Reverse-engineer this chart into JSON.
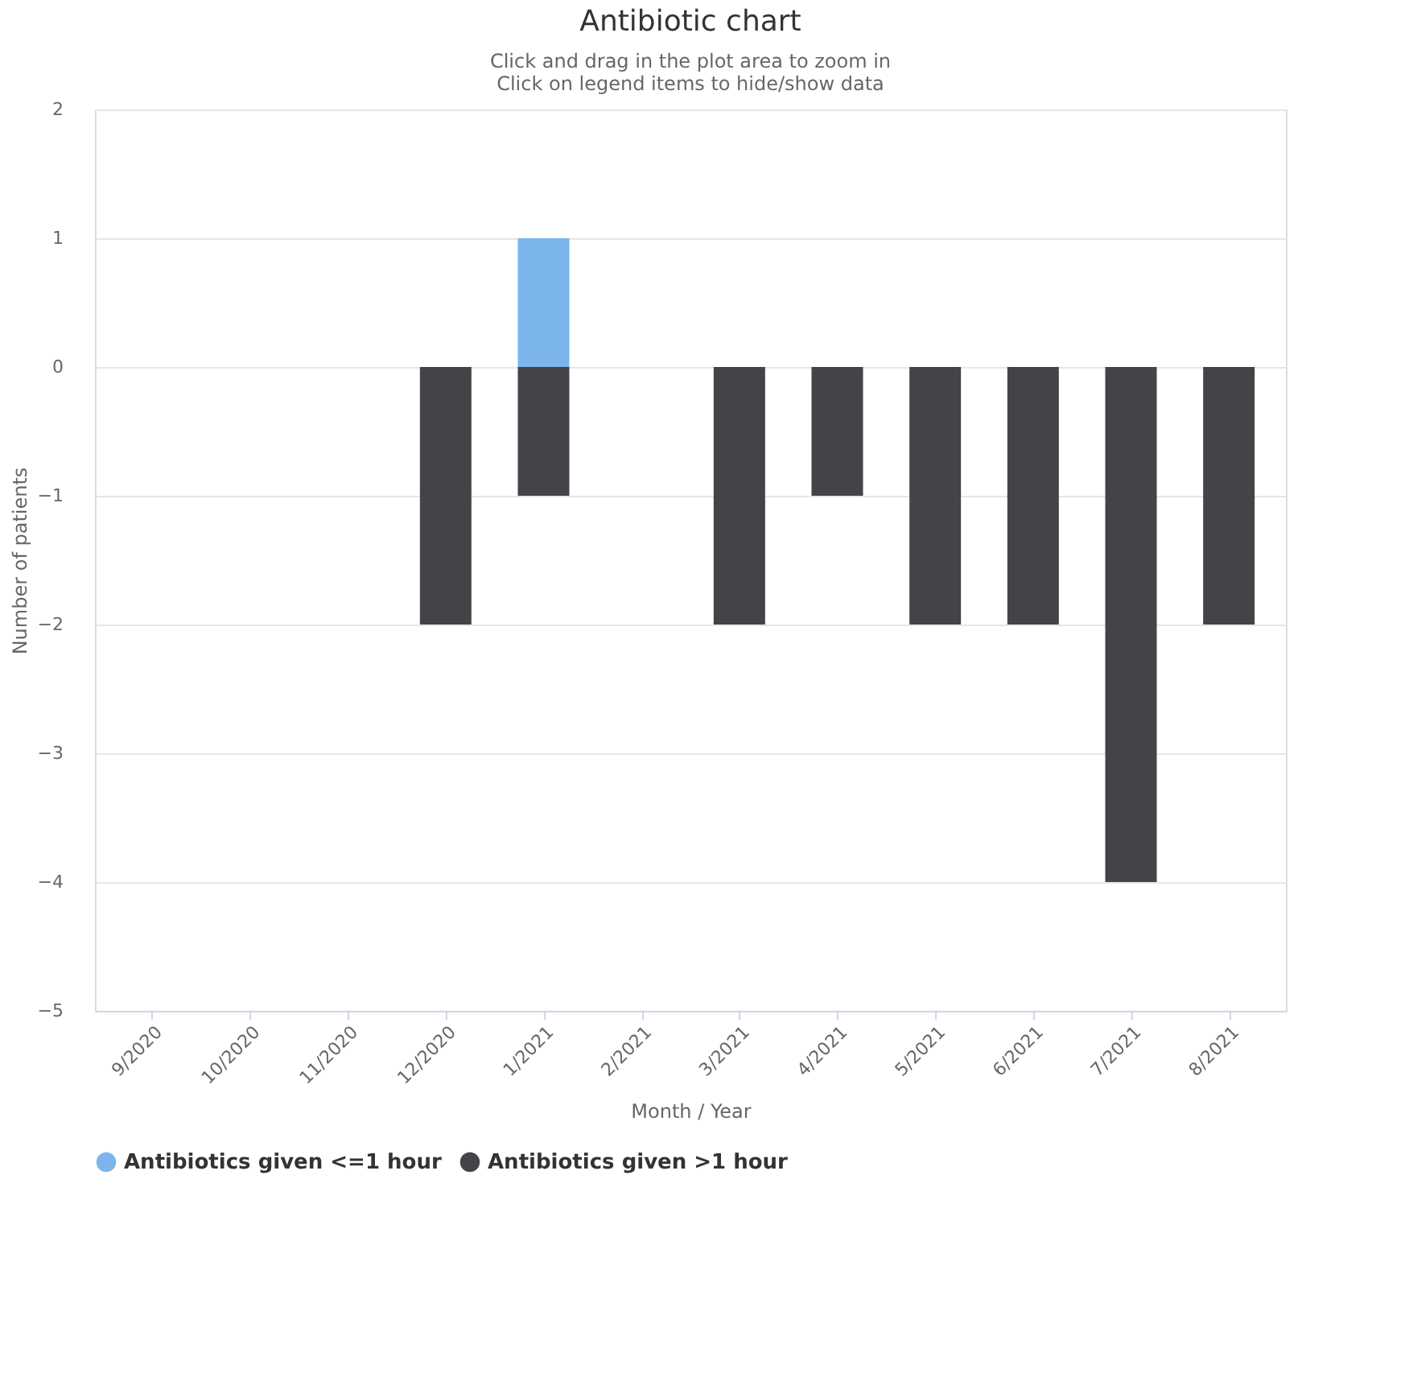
{
  "chart_data": {
    "type": "bar",
    "title": "Antibiotic chart",
    "subtitle": [
      "Click and drag in the plot area to zoom in",
      "Click on legend items to hide/show data"
    ],
    "xlabel": "Month / Year",
    "ylabel": "Number of patients",
    "categories": [
      "9/2020",
      "10/2020",
      "11/2020",
      "12/2020",
      "1/2021",
      "2/2021",
      "3/2021",
      "4/2021",
      "5/2021",
      "6/2021",
      "7/2021",
      "8/2021"
    ],
    "series": [
      {
        "name": "Antibiotics given <=1 hour",
        "color": "#7cb5ec",
        "values": [
          null,
          null,
          null,
          null,
          1,
          null,
          null,
          null,
          null,
          null,
          null,
          null
        ]
      },
      {
        "name": "Antibiotics given >1 hour",
        "color": "#434348",
        "values": [
          null,
          null,
          null,
          -2,
          -1,
          null,
          -2,
          -1,
          -2,
          -2,
          -4,
          -2
        ]
      }
    ],
    "ylim": [
      -5,
      2
    ],
    "yticks": [
      -5,
      -4,
      -3,
      -2,
      -1,
      0,
      1,
      2
    ],
    "grid": "y",
    "legend": "bottom"
  }
}
